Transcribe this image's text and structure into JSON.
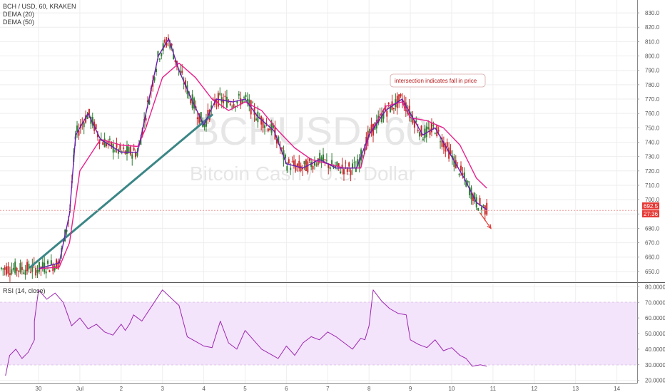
{
  "header": {
    "symbol_line": "BCH / USD, 60, KRAKEN",
    "ind1": "DEMA (20)",
    "ind2": "DEMA (50)"
  },
  "watermark": {
    "big": "BCHUSD, 60",
    "small": "Bitcoin Cash / U.S. Dollar"
  },
  "annotation": "intersection indicates fall in price",
  "price_badge": "692.5",
  "time_badge": "27:36",
  "rsi": {
    "label": "RSI (14, close)",
    "levels": [
      "80.0000",
      "70.0000",
      "60.0000",
      "50.0000",
      "40.0000",
      "30.0000",
      "20.0000"
    ]
  },
  "colors": {
    "up": "#2e7d32",
    "down": "#c62828",
    "dema20": "#6a1fb0",
    "dema50": "#e91e8c",
    "trendline": "#3b8686",
    "rsi": "#9c27b0",
    "rsi_band": "#f3e3fb",
    "badge": "#e53935"
  },
  "chart_data": [
    {
      "type": "line",
      "title": "BCH / USD, 60, KRAKEN",
      "x_categories": [
        "30",
        "Jul",
        "2",
        "3",
        "4",
        "5",
        "6",
        "7",
        "8",
        "9",
        "10",
        "11",
        "12",
        "13",
        "14"
      ],
      "ylim": [
        643,
        835
      ],
      "y_ticks": [
        "830.0",
        "820.0",
        "810.0",
        "800.0",
        "790.0",
        "780.0",
        "770.0",
        "760.0",
        "750.0",
        "740.0",
        "730.0",
        "720.0",
        "710.0",
        "700.0",
        "690.0",
        "680.0",
        "670.0",
        "660.0",
        "650.0"
      ],
      "series": [
        {
          "name": "DEMA (20)",
          "x": [
            0,
            0.5,
            0.75,
            0.9,
            1.2,
            1.5,
            2.0,
            2.4,
            2.6,
            2.9,
            3.15,
            3.4,
            3.7,
            4.0,
            4.3,
            4.7,
            5.0,
            5.3,
            5.7,
            6.0,
            6.4,
            6.8,
            7.2,
            7.7,
            8.0,
            8.4,
            8.8,
            9.0,
            9.3,
            9.6,
            10.0,
            10.3,
            10.6,
            10.85
          ],
          "values": [
            652,
            656,
            690,
            745,
            760,
            742,
            733,
            733,
            760,
            800,
            812,
            790,
            770,
            752,
            770,
            768,
            770,
            758,
            748,
            725,
            722,
            728,
            722,
            722,
            745,
            762,
            770,
            760,
            745,
            750,
            730,
            715,
            698,
            693
          ]
        },
        {
          "name": "DEMA (50)",
          "x": [
            0,
            0.5,
            0.75,
            1.0,
            1.5,
            2.0,
            2.4,
            2.6,
            3.0,
            3.4,
            3.8,
            4.2,
            4.6,
            5.0,
            5.4,
            5.8,
            6.2,
            6.6,
            7.0,
            7.4,
            7.8,
            8.0,
            8.4,
            8.8,
            9.0,
            9.4,
            9.8,
            10.2,
            10.6,
            10.85
          ],
          "values": [
            652,
            653,
            670,
            720,
            742,
            738,
            737,
            750,
            785,
            795,
            785,
            770,
            762,
            768,
            762,
            748,
            736,
            728,
            725,
            722,
            722,
            745,
            765,
            768,
            757,
            755,
            750,
            738,
            715,
            708
          ]
        }
      ],
      "annotations": {
        "trendline_from": [
          -0.2,
          653
        ],
        "trendline_to": [
          4.2,
          759
        ],
        "arrow_to": [
          10.95,
          680
        ],
        "current_price": 692.5
      }
    },
    {
      "type": "line",
      "title": "RSI (14, close)",
      "ylim": [
        18,
        82
      ],
      "band": [
        30,
        70
      ],
      "y_ticks": [
        "80.0000",
        "70.0000",
        "60.0000",
        "50.0000",
        "40.0000",
        "30.0000",
        "20.0000"
      ],
      "series": [
        {
          "name": "RSI (14, close)",
          "x": [
            -0.8,
            -0.7,
            -0.55,
            -0.4,
            -0.25,
            -0.1,
            -0.1,
            0.0,
            0.2,
            0.4,
            0.6,
            0.8,
            1.0,
            1.2,
            1.4,
            1.6,
            1.8,
            2.0,
            2.1,
            2.2,
            2.3,
            2.5,
            2.8,
            3.0,
            3.2,
            3.4,
            3.6,
            3.8,
            4.0,
            4.2,
            4.4,
            4.6,
            4.8,
            5.0,
            5.2,
            5.4,
            5.6,
            5.8,
            6.0,
            6.2,
            6.4,
            6.6,
            6.8,
            7.0,
            7.2,
            7.4,
            7.6,
            7.8,
            7.9,
            8.0,
            8.1,
            8.3,
            8.5,
            8.7,
            8.9,
            9.0,
            9.2,
            9.4,
            9.6,
            9.8,
            10.0,
            10.2,
            10.35,
            10.5,
            10.7,
            10.85
          ],
          "values": [
            23,
            36,
            40,
            34,
            38,
            46,
            58,
            78,
            72,
            76,
            70,
            55,
            60,
            53,
            56,
            51,
            49,
            56,
            52,
            56,
            62,
            58,
            70,
            78,
            73,
            68,
            48,
            45,
            42,
            41,
            58,
            44,
            40,
            52,
            46,
            40,
            37,
            34,
            42,
            36,
            44,
            48,
            46,
            51,
            48,
            44,
            40,
            47,
            46,
            55,
            78,
            71,
            66,
            63,
            62,
            46,
            43,
            41,
            46,
            39,
            41,
            36,
            34,
            29,
            30,
            29
          ]
        }
      ]
    }
  ]
}
